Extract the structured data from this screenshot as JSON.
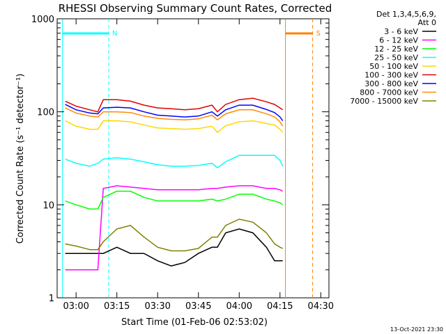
{
  "chart_data": {
    "type": "line",
    "title": "RHESSI Observing Summary Count Rates, Corrected",
    "xlabel": "Start Time (01-Feb-06 02:53:02)",
    "ylabel": "Corrected Count Rate (s⁻¹ detector⁻¹)",
    "xlim": [
      "02:53:02",
      "04:33:00"
    ],
    "ylim": [
      1,
      1000
    ],
    "yscale": "log",
    "x_ticks": [
      "03:00",
      "03:15",
      "03:30",
      "03:45",
      "04:00",
      "04:15",
      "04:30"
    ],
    "y_ticks": [
      "1",
      "10",
      "100",
      "1000"
    ],
    "legend_header": [
      "Det 1,3,4,5,6,9,",
      "Att 0"
    ],
    "legend_position": "outside-right",
    "time_stamp": "13-Oct-2021 23:30",
    "markers": [
      {
        "label": "N",
        "color": "#00ffff",
        "start": "02:55",
        "end": "03:12",
        "style": "bar"
      },
      {
        "label": "S",
        "color": "#ff8000",
        "start": "04:17",
        "end": "04:27",
        "style": "bar"
      }
    ],
    "x": [
      "02:56",
      "03:00",
      "03:05",
      "03:08",
      "03:10",
      "03:15",
      "03:20",
      "03:25",
      "03:30",
      "03:35",
      "03:40",
      "03:45",
      "03:50",
      "03:52",
      "03:55",
      "04:00",
      "04:05",
      "04:10",
      "04:13",
      "04:15",
      "04:16"
    ],
    "series": [
      {
        "name": "3 - 6 keV",
        "color": "#000000",
        "values": [
          3,
          3,
          3,
          3,
          3,
          3.5,
          3,
          3,
          2.5,
          2.2,
          2.4,
          3,
          3.5,
          3.5,
          5,
          5.5,
          5,
          3.5,
          2.5,
          2.5,
          2.5
        ]
      },
      {
        "name": "6 - 12 keV",
        "color": "#ff00ff",
        "values": [
          2,
          2,
          2,
          2,
          15,
          16,
          15.5,
          15,
          14.5,
          14.5,
          14.5,
          14.5,
          15,
          15,
          15.5,
          16,
          16,
          15,
          15,
          14.5,
          14
        ]
      },
      {
        "name": "12 - 25 keV",
        "color": "#00ff00",
        "values": [
          11,
          10,
          9,
          9,
          12,
          14,
          14,
          12,
          11,
          11,
          11,
          11,
          11.5,
          11,
          11.5,
          13,
          13,
          11.5,
          11,
          10.5,
          10
        ]
      },
      {
        "name": "25 - 50 keV",
        "color": "#00ffff",
        "values": [
          31,
          28,
          26,
          28,
          31,
          32,
          31,
          29,
          27,
          26,
          26,
          26.5,
          28,
          25,
          29,
          34,
          34,
          34,
          34,
          30,
          26
        ]
      },
      {
        "name": "50 - 100 keV",
        "color": "#ffd700",
        "values": [
          80,
          70,
          65,
          65,
          80,
          80,
          78,
          72,
          67,
          66,
          65,
          66,
          70,
          60,
          71,
          78,
          80,
          75,
          72,
          65,
          60
        ]
      },
      {
        "name": "100 - 300 keV",
        "color": "#e00000",
        "values": [
          130,
          115,
          105,
          100,
          135,
          135,
          130,
          118,
          110,
          108,
          105,
          108,
          118,
          100,
          120,
          135,
          140,
          128,
          120,
          110,
          105
        ]
      },
      {
        "name": "300 - 800 keV",
        "color": "#0000ff",
        "values": [
          120,
          105,
          97,
          95,
          110,
          112,
          110,
          100,
          92,
          90,
          88,
          90,
          100,
          90,
          105,
          118,
          118,
          106,
          98,
          88,
          80
        ]
      },
      {
        "name": "800 - 7000 keV",
        "color": "#ff8c00",
        "values": [
          110,
          97,
          90,
          88,
          100,
          100,
          98,
          90,
          85,
          83,
          82,
          84,
          92,
          82,
          95,
          105,
          105,
          95,
          88,
          78,
          70
        ]
      },
      {
        "name": "7000 - 15000 keV",
        "color": "#808000",
        "values": [
          3.8,
          3.6,
          3.3,
          3.3,
          4,
          5.5,
          6,
          4.5,
          3.5,
          3.2,
          3.2,
          3.4,
          4.5,
          4.5,
          6,
          7,
          6.5,
          5,
          3.8,
          3.5,
          3.4
        ]
      }
    ]
  }
}
